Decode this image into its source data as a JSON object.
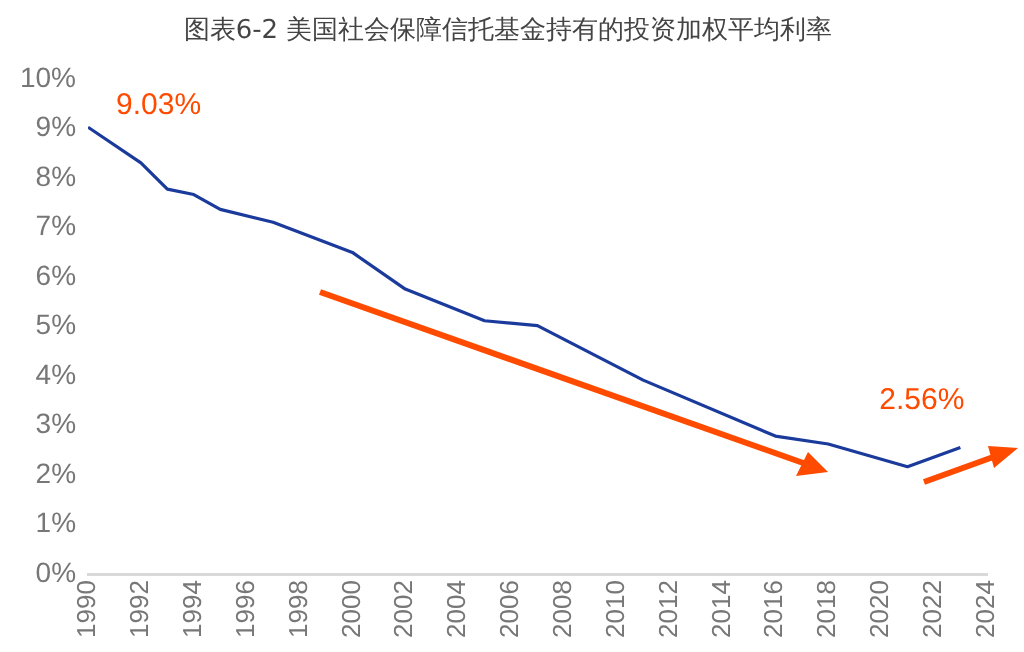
{
  "chart_data": {
    "type": "line",
    "title": "图表6-2 美国社会保障信托基金持有的投资加权平均利率",
    "x": [
      1990,
      1992,
      1993,
      1994,
      1995,
      1997,
      2000,
      2002,
      2005,
      2007,
      2011,
      2016,
      2018,
      2021,
      2023
    ],
    "series": [
      {
        "color": "#1a3a9c",
        "values": [
          9.03,
          8.31,
          7.78,
          7.67,
          7.37,
          7.11,
          6.5,
          5.76,
          5.12,
          5.02,
          3.92,
          2.79,
          2.63,
          2.17,
          2.56
        ],
        "value_labels": [
          "9.03%",
          null,
          null,
          null,
          null,
          null,
          null,
          null,
          null,
          null,
          null,
          null,
          null,
          null,
          "2.56%"
        ]
      }
    ],
    "xlim": [
      1990,
      2024
    ],
    "xticks": [
      1990,
      1992,
      1994,
      1996,
      1998,
      2000,
      2002,
      2004,
      2006,
      2008,
      2010,
      2012,
      2014,
      2016,
      2018,
      2020,
      2022,
      2024
    ],
    "ylim": [
      0,
      10
    ],
    "yticks": [
      {
        "value": 0,
        "label": "0%"
      },
      {
        "value": 1,
        "label": "1%"
      },
      {
        "value": 2,
        "label": "2%"
      },
      {
        "value": 3,
        "label": "3%"
      },
      {
        "value": 4,
        "label": "4%"
      },
      {
        "value": 5,
        "label": "5%"
      },
      {
        "value": 6,
        "label": "6%"
      },
      {
        "value": 7,
        "label": "7%"
      },
      {
        "value": 8,
        "label": "8%"
      },
      {
        "value": 9,
        "label": "9%"
      },
      {
        "value": 10,
        "label": "10%"
      }
    ],
    "grid": false,
    "legend": false,
    "marker": "none",
    "line_style": "solid"
  }
}
